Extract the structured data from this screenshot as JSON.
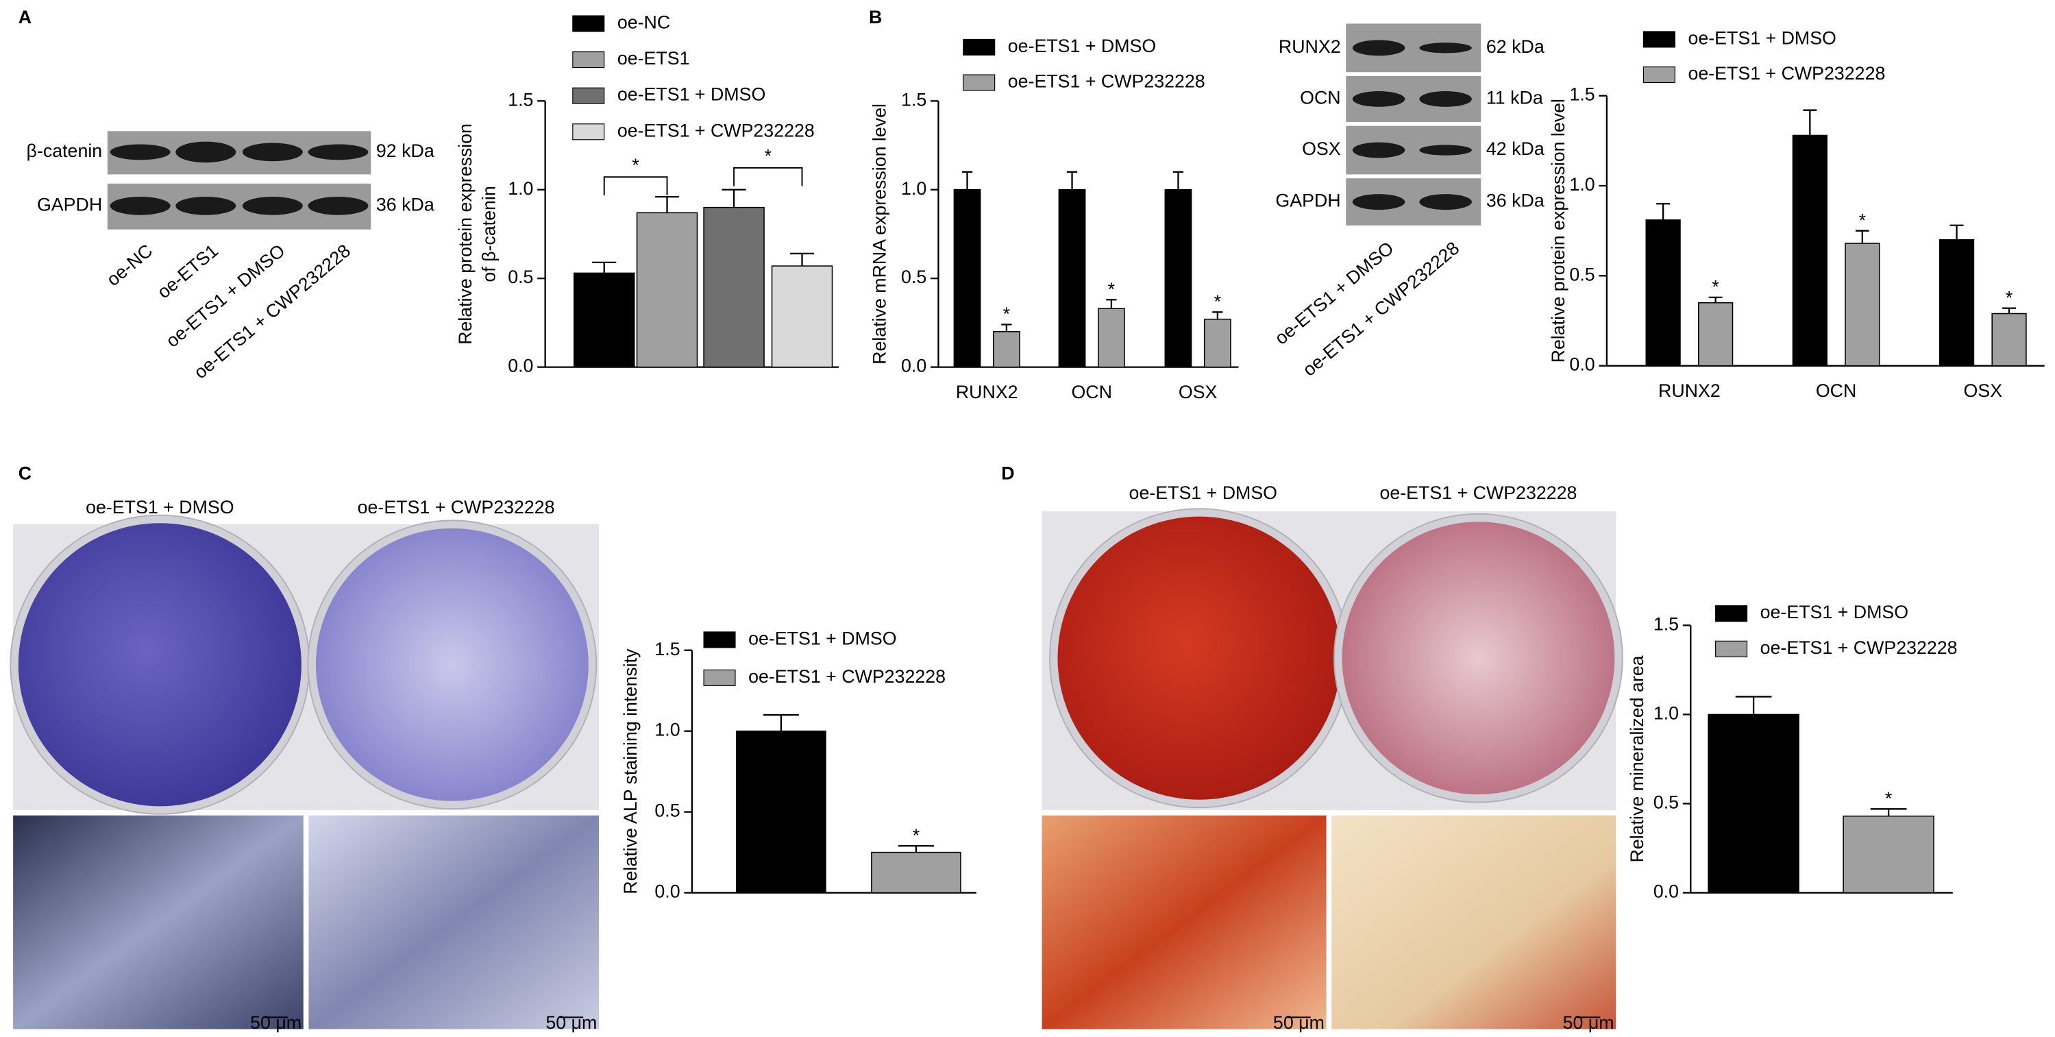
{
  "chart_data": [
    {
      "type": "bar",
      "ylabel": [
        "Relative protein expression",
        "of β-catenin"
      ],
      "categories": [
        null
      ],
      "series": [
        {
          "name": "oe-NC",
          "color": "#000000",
          "values": [
            0.53
          ],
          "errors": [
            0.06
          ]
        },
        {
          "name": "oe-ETS1",
          "color": "#a0a0a0",
          "values": [
            0.87
          ],
          "errors": [
            0.09
          ]
        },
        {
          "name": "oe-ETS1 + DMSO",
          "color": "#707070",
          "values": [
            0.9
          ],
          "errors": [
            0.1
          ]
        },
        {
          "name": "oe-ETS1 + CWP232228",
          "color": "#d9d9d9",
          "values": [
            0.57
          ],
          "errors": [
            0.07
          ]
        }
      ],
      "annotations": [
        "*",
        "*"
      ],
      "ylim": [
        0,
        1.5
      ],
      "yticks": [
        {
          "value": 0,
          "label": "0.0"
        },
        0.5,
        {
          "value": 1,
          "label": "1.0"
        },
        1.5
      ]
    },
    {
      "type": "bar",
      "ylabel": "Relative mRNA expression level",
      "categories": [
        "RUNX2",
        "OCN",
        "OSX"
      ],
      "series": [
        {
          "name": "oe-ETS1 + DMSO",
          "color": "#000000",
          "values": [
            1.0,
            1.0,
            1.0
          ],
          "errors": [
            0.1,
            0.1,
            0.1
          ]
        },
        {
          "name": "oe-ETS1 + CWP232228",
          "color": "#a0a0a0",
          "values": [
            0.2,
            0.33,
            0.27
          ],
          "errors": [
            0.04,
            0.05,
            0.04
          ],
          "annotations": [
            "*",
            "*",
            "*"
          ]
        }
      ],
      "ylim": [
        0,
        1.5
      ],
      "yticks": [
        {
          "value": 0,
          "label": "0.0"
        },
        0.5,
        {
          "value": 1,
          "label": "1.0"
        },
        1.5
      ]
    },
    {
      "type": "bar",
      "ylabel": "Relative protein expression level",
      "categories": [
        "RUNX2",
        "OCN",
        "OSX"
      ],
      "series": [
        {
          "name": "oe-ETS1 + DMSO",
          "color": "#000000",
          "values": [
            0.81,
            1.28,
            0.7
          ],
          "errors": [
            0.09,
            0.14,
            0.08
          ]
        },
        {
          "name": "oe-ETS1 + CWP232228",
          "color": "#a0a0a0",
          "values": [
            0.35,
            0.68,
            0.29
          ],
          "errors": [
            0.03,
            0.07,
            0.03
          ],
          "annotations": [
            "*",
            "*",
            "*"
          ]
        }
      ],
      "ylim": [
        0,
        1.5
      ],
      "yticks": [
        {
          "value": 0,
          "label": "0.0"
        },
        0.5,
        {
          "value": 1,
          "label": "1.0"
        },
        1.5
      ]
    },
    {
      "type": "bar",
      "ylabel": "Relative ALP staining intensity",
      "categories": [
        null
      ],
      "series": [
        {
          "name": "oe-ETS1 + DMSO",
          "color": "#000000",
          "values": [
            1.0
          ],
          "errors": [
            0.1
          ]
        },
        {
          "name": "oe-ETS1 + CWP232228",
          "color": "#a0a0a0",
          "values": [
            0.25
          ],
          "errors": [
            0.04
          ],
          "annotations": [
            "*"
          ]
        }
      ],
      "ylim": [
        0,
        1.5
      ],
      "yticks": [
        {
          "value": 0,
          "label": "0.0"
        },
        0.5,
        {
          "value": 1,
          "label": "1.0"
        },
        1.5
      ]
    },
    {
      "type": "bar",
      "ylabel": "Relative mineralized area",
      "categories": [
        null
      ],
      "series": [
        {
          "name": "oe-ETS1 + DMSO",
          "color": "#000000",
          "values": [
            1.0
          ],
          "errors": [
            0.1
          ]
        },
        {
          "name": "oe-ETS1 + CWP232228",
          "color": "#a0a0a0",
          "values": [
            0.43
          ],
          "errors": [
            0.04
          ],
          "annotations": [
            "*"
          ]
        }
      ],
      "ylim": [
        0,
        1.5
      ],
      "yticks": [
        {
          "value": 0,
          "label": "0.0"
        },
        0.5,
        {
          "value": 1,
          "label": "1.0"
        },
        1.5
      ]
    }
  ],
  "figure": {
    "panels": [
      "A",
      "B",
      "C",
      "D"
    ],
    "blot_a": {
      "rows": [
        "β-catenin",
        "GAPDH"
      ],
      "sizes": [
        "92 kDa",
        "36 kDa"
      ],
      "lanes": [
        "oe-NC",
        "oe-ETS1",
        "oe-ETS1 + DMSO",
        "oe-ETS1 + CWP232228"
      ]
    },
    "blot_b": {
      "rows": [
        "RUNX2",
        "OCN",
        "OSX",
        "GAPDH"
      ],
      "sizes": [
        "62 kDa",
        "11 kDa",
        "42 kDa",
        "36 kDa"
      ],
      "lanes": [
        "oe-ETS1 + DMSO",
        "oe-ETS1 + CWP232228"
      ]
    },
    "photo_c": {
      "labels": [
        "oe-ETS1 + DMSO",
        "oe-ETS1 + CWP232228"
      ],
      "scale": [
        "50 μm",
        "50 μm"
      ]
    },
    "photo_d": {
      "labels": [
        "oe-ETS1 + DMSO",
        "oe-ETS1 + CWP232228"
      ],
      "scale": [
        "50 μm",
        "50 μm"
      ]
    }
  }
}
